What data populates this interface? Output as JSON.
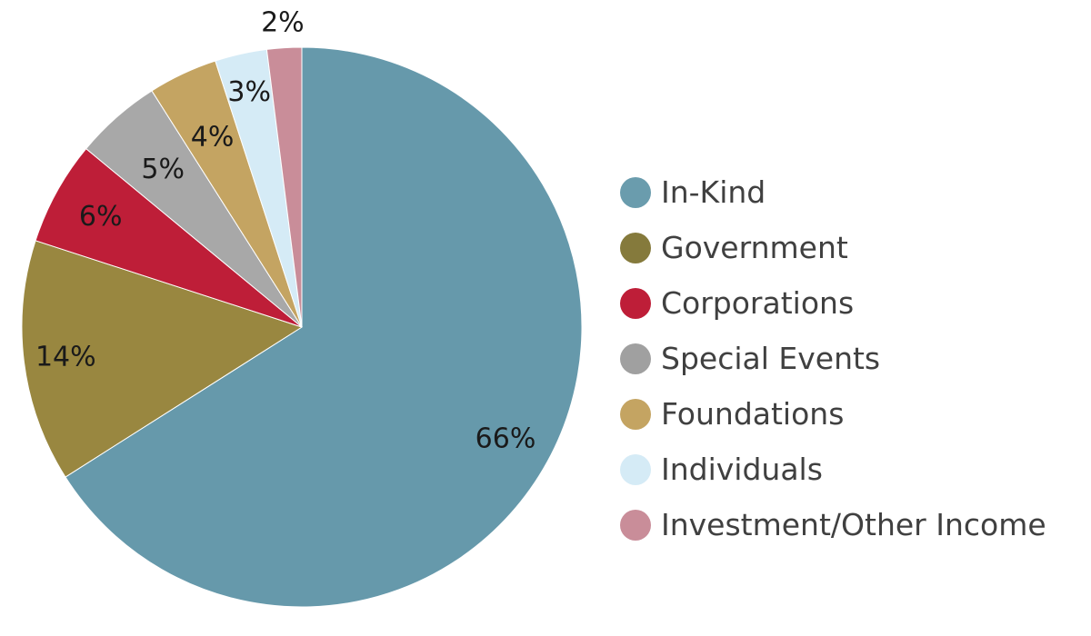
{
  "chart_data": {
    "type": "pie",
    "title": "",
    "legend_position": "right",
    "slices": [
      {
        "label": "In-Kind",
        "value": 66,
        "value_label": "66%",
        "color": "#6699ab"
      },
      {
        "label": "Government",
        "value": 14,
        "value_label": "14%",
        "color": "#998740"
      },
      {
        "label": "Corporations",
        "value": 6,
        "value_label": "6%",
        "color": "#be1e38"
      },
      {
        "label": "Special Events",
        "value": 5,
        "value_label": "5%",
        "color": "#a8a8a8"
      },
      {
        "label": "Foundations",
        "value": 4,
        "value_label": "4%",
        "color": "#c4a462"
      },
      {
        "label": "Individuals",
        "value": 3,
        "value_label": "3%",
        "color": "#d5ebf6"
      },
      {
        "label": "Investment/Other Income",
        "value": 2,
        "value_label": "2%",
        "color": "#c98d99"
      }
    ],
    "legend_swatch_colors": [
      "#6a9cad",
      "#857a3c",
      "#be1e38",
      "#a0a0a0",
      "#c4a462",
      "#d5ebf6",
      "#c98d99"
    ]
  }
}
